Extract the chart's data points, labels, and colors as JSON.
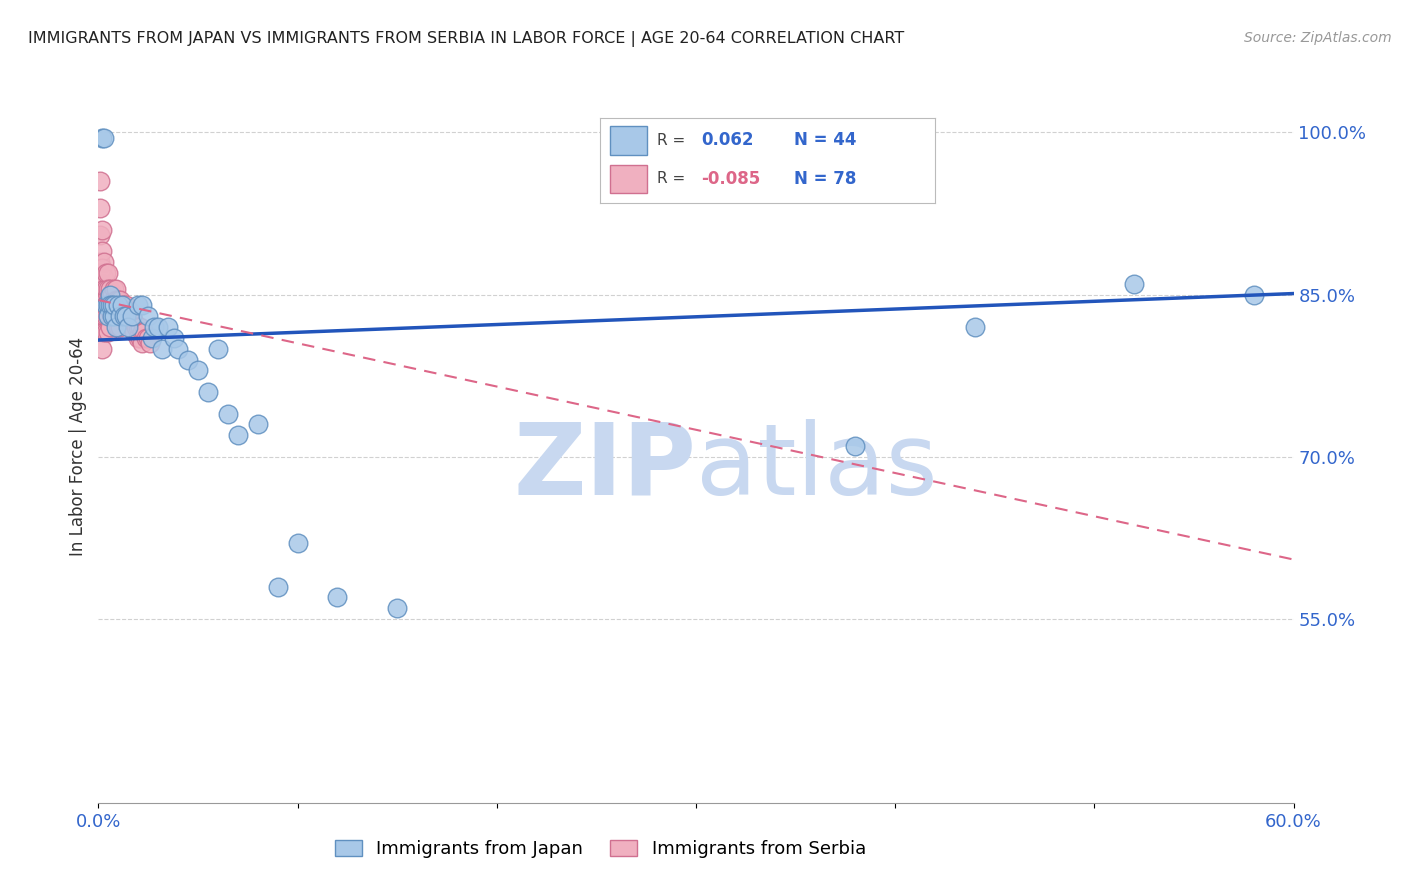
{
  "title": "IMMIGRANTS FROM JAPAN VS IMMIGRANTS FROM SERBIA IN LABOR FORCE | AGE 20-64 CORRELATION CHART",
  "source": "Source: ZipAtlas.com",
  "ylabel": "In Labor Force | Age 20-64",
  "xlim": [
    0.0,
    0.6
  ],
  "ylim": [
    0.38,
    1.04
  ],
  "xticks": [
    0.0,
    0.1,
    0.2,
    0.3,
    0.4,
    0.5,
    0.6
  ],
  "xticklabels": [
    "0.0%",
    "",
    "",
    "",
    "",
    "",
    "60.0%"
  ],
  "yticks_right": [
    0.55,
    0.7,
    0.85,
    1.0
  ],
  "ytick_labels_right": [
    "55.0%",
    "70.0%",
    "85.0%",
    "100.0%"
  ],
  "grid_color": "#cccccc",
  "background_color": "#ffffff",
  "japan_color": "#a8c8e8",
  "japan_edge_color": "#6090c0",
  "serbia_color": "#f0b0c0",
  "serbia_edge_color": "#d07090",
  "japan_R": 0.062,
  "japan_N": 44,
  "serbia_R": -0.085,
  "serbia_N": 78,
  "japan_line_color": "#2255bb",
  "serbia_line_color": "#dd6688",
  "watermark_zip": "ZIP",
  "watermark_atlas": "atlas",
  "watermark_color": "#c8d8f0",
  "legend_label_japan": "Immigrants from Japan",
  "legend_label_serbia": "Immigrants from Serbia",
  "japan_x": [
    0.002,
    0.003,
    0.004,
    0.005,
    0.005,
    0.006,
    0.006,
    0.007,
    0.007,
    0.008,
    0.008,
    0.009,
    0.01,
    0.011,
    0.012,
    0.013,
    0.014,
    0.015,
    0.017,
    0.02,
    0.022,
    0.025,
    0.027,
    0.028,
    0.03,
    0.032,
    0.035,
    0.038,
    0.04,
    0.045,
    0.05,
    0.055,
    0.06,
    0.065,
    0.07,
    0.08,
    0.09,
    0.1,
    0.12,
    0.15,
    0.38,
    0.44,
    0.52,
    0.58
  ],
  "japan_y": [
    0.995,
    0.995,
    0.84,
    0.84,
    0.83,
    0.85,
    0.84,
    0.83,
    0.84,
    0.83,
    0.84,
    0.82,
    0.84,
    0.83,
    0.84,
    0.83,
    0.83,
    0.82,
    0.83,
    0.84,
    0.84,
    0.83,
    0.81,
    0.82,
    0.82,
    0.8,
    0.82,
    0.81,
    0.8,
    0.79,
    0.78,
    0.76,
    0.8,
    0.74,
    0.72,
    0.73,
    0.58,
    0.62,
    0.57,
    0.56,
    0.71,
    0.82,
    0.86,
    0.85
  ],
  "serbia_x": [
    0.001,
    0.001,
    0.001,
    0.001,
    0.001,
    0.001,
    0.001,
    0.001,
    0.001,
    0.001,
    0.002,
    0.002,
    0.002,
    0.002,
    0.002,
    0.002,
    0.002,
    0.002,
    0.003,
    0.003,
    0.003,
    0.003,
    0.003,
    0.003,
    0.004,
    0.004,
    0.004,
    0.004,
    0.004,
    0.005,
    0.005,
    0.005,
    0.005,
    0.005,
    0.006,
    0.006,
    0.006,
    0.006,
    0.007,
    0.007,
    0.007,
    0.008,
    0.008,
    0.008,
    0.009,
    0.009,
    0.009,
    0.01,
    0.01,
    0.01,
    0.011,
    0.011,
    0.011,
    0.012,
    0.012,
    0.013,
    0.013,
    0.014,
    0.014,
    0.015,
    0.015,
    0.016,
    0.016,
    0.017,
    0.017,
    0.018,
    0.018,
    0.019,
    0.02,
    0.02,
    0.021,
    0.021,
    0.022,
    0.022,
    0.023,
    0.024,
    0.025,
    0.026
  ],
  "serbia_y": [
    0.955,
    0.93,
    0.905,
    0.88,
    0.87,
    0.86,
    0.855,
    0.845,
    0.83,
    0.82,
    0.91,
    0.89,
    0.875,
    0.86,
    0.845,
    0.83,
    0.815,
    0.8,
    0.88,
    0.865,
    0.855,
    0.845,
    0.83,
    0.815,
    0.87,
    0.855,
    0.845,
    0.83,
    0.815,
    0.87,
    0.855,
    0.845,
    0.83,
    0.815,
    0.855,
    0.845,
    0.835,
    0.82,
    0.85,
    0.84,
    0.83,
    0.855,
    0.845,
    0.83,
    0.855,
    0.845,
    0.83,
    0.845,
    0.835,
    0.82,
    0.845,
    0.835,
    0.82,
    0.84,
    0.83,
    0.84,
    0.83,
    0.84,
    0.83,
    0.835,
    0.825,
    0.835,
    0.825,
    0.83,
    0.82,
    0.825,
    0.815,
    0.82,
    0.82,
    0.81,
    0.82,
    0.81,
    0.815,
    0.805,
    0.815,
    0.81,
    0.81,
    0.805
  ],
  "japan_trend_x0": 0.0,
  "japan_trend_y0": 0.808,
  "japan_trend_x1": 0.6,
  "japan_trend_y1": 0.851,
  "serbia_trend_x0": 0.0,
  "serbia_trend_y0": 0.845,
  "serbia_trend_x1": 0.6,
  "serbia_trend_y1": 0.605
}
